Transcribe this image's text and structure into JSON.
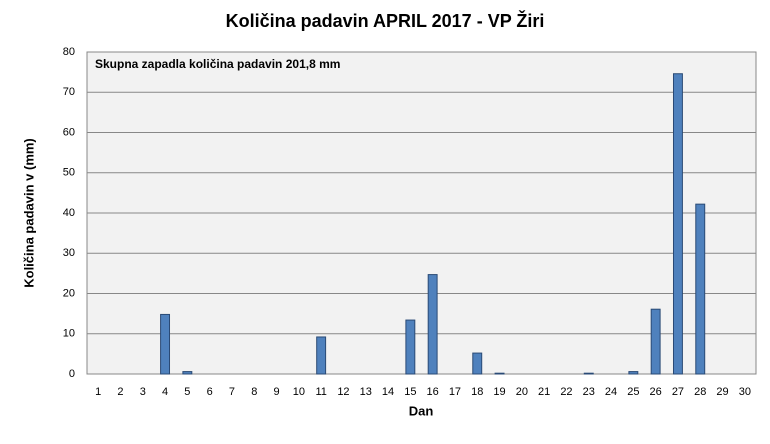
{
  "chart_data": {
    "type": "bar",
    "title": "Količina padavin APRIL 2017 - VP Žiri",
    "annotation": "Skupna zapadla količina padavin 201,8 mm",
    "x_label": "Dan",
    "y_label": "Količina padavin v  (mm)",
    "categories": [
      "1",
      "2",
      "3",
      "4",
      "5",
      "6",
      "7",
      "8",
      "9",
      "10",
      "11",
      "12",
      "13",
      "14",
      "15",
      "16",
      "17",
      "18",
      "19",
      "20",
      "21",
      "22",
      "23",
      "24",
      "25",
      "26",
      "27",
      "28",
      "29",
      "30"
    ],
    "values": [
      0,
      0,
      0,
      14.8,
      0.6,
      0,
      0,
      0,
      0,
      0,
      9.2,
      0,
      0,
      0,
      13.4,
      24.7,
      0,
      5.2,
      0.2,
      0,
      0,
      0,
      0.2,
      0,
      0.6,
      16.1,
      74.6,
      42.2,
      0,
      0
    ],
    "color": "#4f81bd",
    "ylim": [
      0,
      80
    ],
    "yticks": [
      0,
      10,
      20,
      30,
      40,
      50,
      60,
      70,
      80
    ],
    "grid": true
  }
}
